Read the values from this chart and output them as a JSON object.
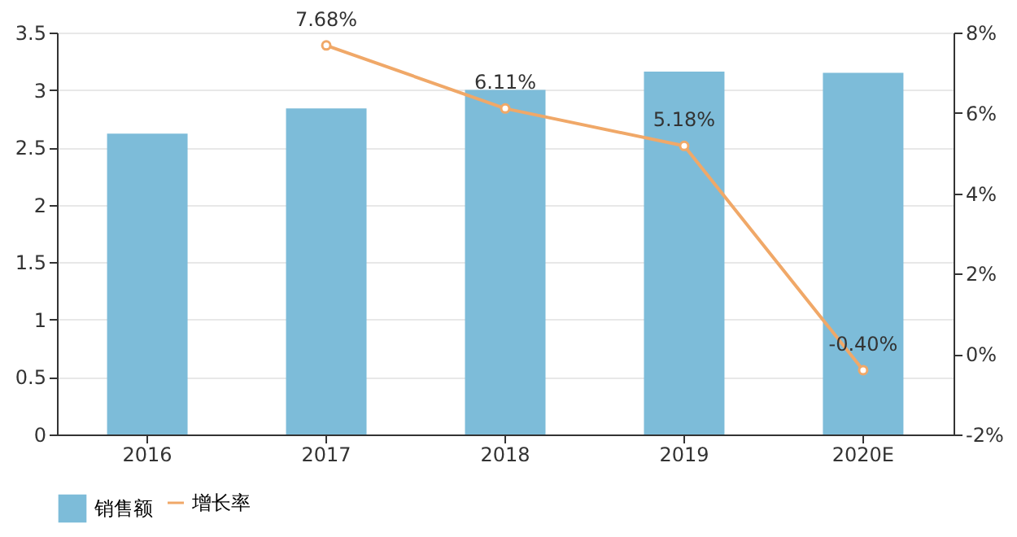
{
  "chart_data": {
    "type": "bar",
    "categories": [
      "2016",
      "2017",
      "2018",
      "2019",
      "2020E"
    ],
    "series": [
      {
        "name": "销售额",
        "color": "#7dbcd9",
        "values": [
          2.62,
          2.84,
          3.0,
          3.16,
          3.15
        ]
      },
      {
        "name": "增长率",
        "type": "line",
        "axis": "y2",
        "color": "#f0a868",
        "marker": "circle",
        "values": [
          null,
          7.68,
          6.11,
          5.18,
          -0.4
        ],
        "value_labels": [
          null,
          "7.68%",
          "6.11%",
          "5.18%",
          "-0.40%"
        ]
      }
    ],
    "ylim": [
      0,
      3.5
    ],
    "yticks": [
      0,
      0.5,
      1,
      1.5,
      2,
      2.5,
      3,
      3.5
    ],
    "y2lim": [
      -2,
      8
    ],
    "y2ticks": [
      {
        "value": -2,
        "label": "-2%"
      },
      {
        "value": 0,
        "label": "0%"
      },
      {
        "value": 2,
        "label": "2%"
      },
      {
        "value": 4,
        "label": "4%"
      },
      {
        "value": 6,
        "label": "6%"
      },
      {
        "value": 8,
        "label": "8%"
      }
    ],
    "grid": "y",
    "legend": "bottom"
  }
}
